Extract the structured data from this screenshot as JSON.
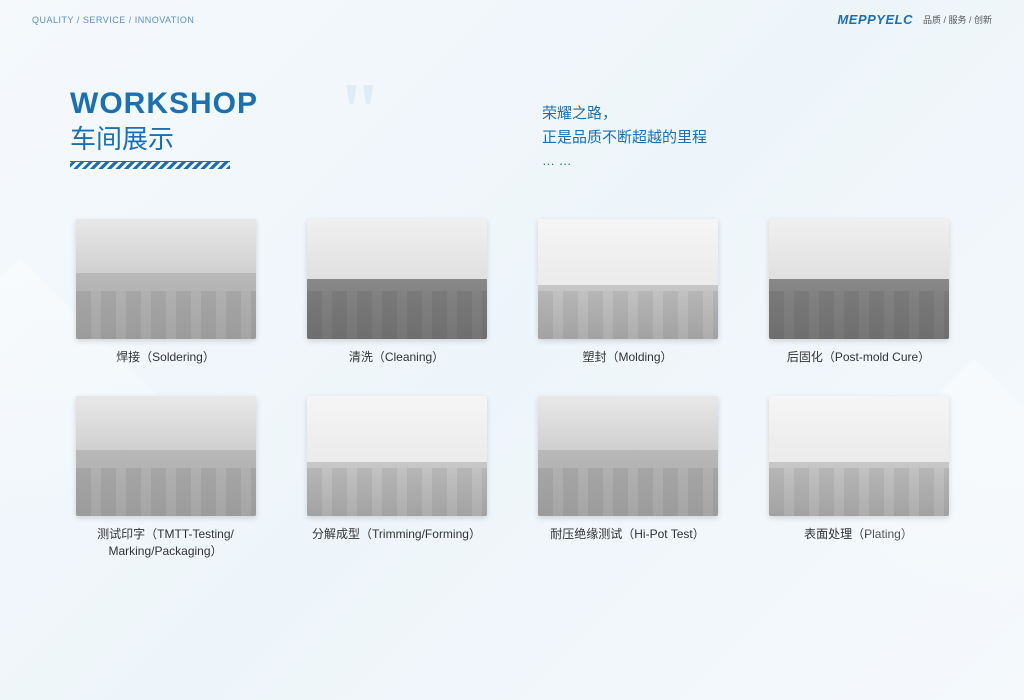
{
  "header": {
    "tagline": "QUALITY / SERVICE / INNOVATION",
    "brand": "MEPPYELC",
    "brand_cn": "品质 / 服务 / 创新"
  },
  "title": {
    "en": "WORKSHOP",
    "cn": "车间展示"
  },
  "slogan": {
    "line1": "荣耀之路，",
    "line2": "正是品质不断超越的里程",
    "dots": "… …"
  },
  "cells": [
    {
      "caption": "焊接（Soldering）"
    },
    {
      "caption": "清洗（Cleaning）"
    },
    {
      "caption": "塑封（Molding）"
    },
    {
      "caption": "后固化（Post-mold Cure）"
    },
    {
      "caption": "测试印字（TMTT-Testing/\nMarking/Packaging）"
    },
    {
      "caption": "分解成型（Trimming/Forming）"
    },
    {
      "caption": "耐压绝缘测试（Hi-Pot Test）"
    },
    {
      "caption": "表面处理（Plating）"
    }
  ],
  "colors": {
    "primary": "#1a6fb5",
    "bg_start": "#f5f9fc",
    "bg_mid": "#eef5fa"
  }
}
